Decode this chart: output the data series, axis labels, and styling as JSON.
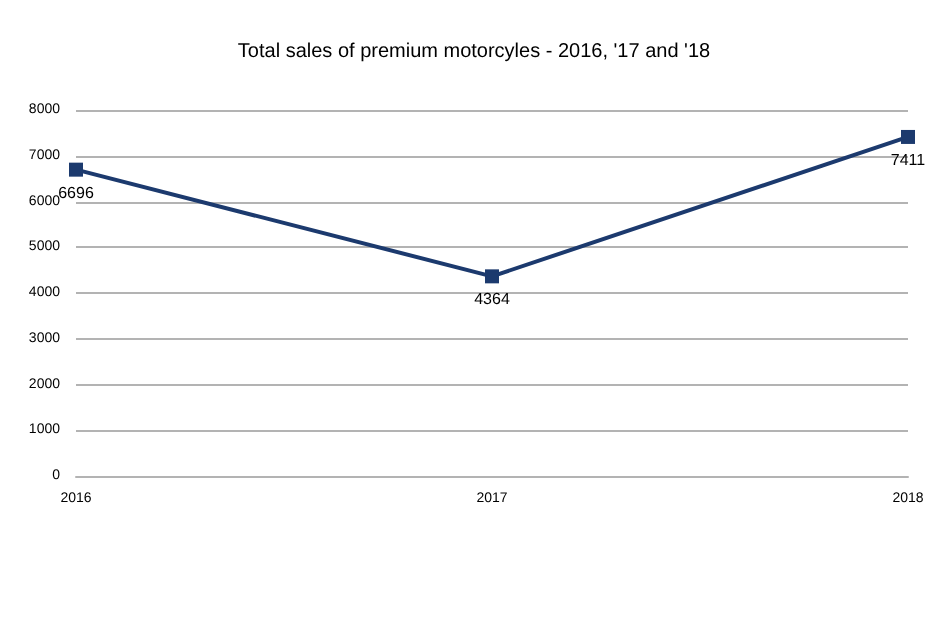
{
  "chart_data": {
    "type": "line",
    "title": "Total sales of premium motorcyles - 2016, '17 and '18",
    "categories": [
      "2016",
      "2017",
      "2018"
    ],
    "series": [
      {
        "color": "#1c3a6e",
        "values": [
          6696,
          4364,
          7411
        ]
      }
    ],
    "ylim": [
      0,
      8000
    ],
    "yticks": [
      0,
      1000,
      2000,
      3000,
      4000,
      5000,
      6000,
      7000,
      8000
    ],
    "grid": "y",
    "marker": "square",
    "line_style": "solid",
    "data_labels": true
  }
}
